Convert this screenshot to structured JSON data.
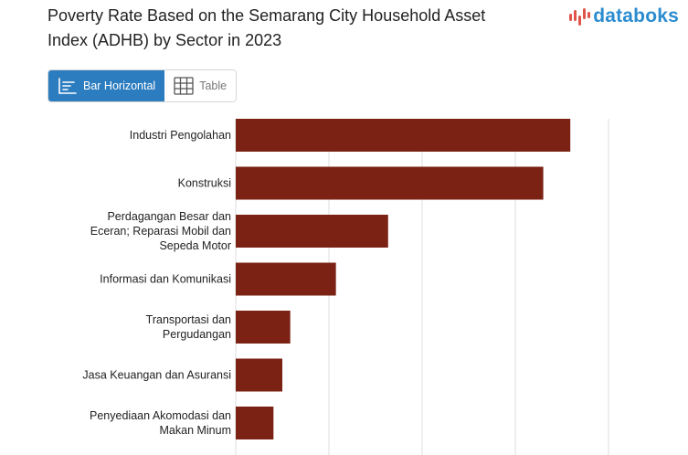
{
  "header": {
    "title": "Poverty Rate Based on the Semarang City Household Asset\nIndex (ADHB) by Sector in 2023",
    "logo_text": "databoks"
  },
  "tabs": [
    {
      "label": "Bar Horizontal",
      "active": true,
      "icon": "bar-chart-icon"
    },
    {
      "label": "Table",
      "active": false,
      "icon": "table-icon"
    }
  ],
  "colors": {
    "bar": "#7b2214",
    "grid": "#dddddd",
    "accent": "#2c7cc0",
    "logo": "#2b8ccf",
    "logo_mark": "#e0554a"
  },
  "chart_data": {
    "type": "bar",
    "orientation": "horizontal",
    "title": "Poverty Rate Based on the Semarang City Household Asset Index (ADHB) by Sector in 2023",
    "categories": [
      "Industri Pengolahan",
      "Konstruksi",
      "Perdagangan Besar dan Eceran; Reparasi Mobil dan Sepeda Motor",
      "Informasi dan Komunikasi",
      "Transportasi dan Pergudangan",
      "Jasa Keuangan dan Asuransi",
      "Penyediaan Akomodasi dan Makan Minum"
    ],
    "category_lines": [
      [
        "Industri Pengolahan"
      ],
      [
        "Konstruksi"
      ],
      [
        "Perdagangan Besar dan",
        "Eceran; Reparasi Mobil dan",
        "Sepeda Motor"
      ],
      [
        "Informasi dan Komunikasi"
      ],
      [
        "Transportasi dan",
        "Pergudangan"
      ],
      [
        "Jasa Keuangan dan Asuransi"
      ],
      [
        "Penyediaan Akomodasi dan",
        "Makan Minum"
      ]
    ],
    "values": [
      7.18,
      6.6,
      3.27,
      2.15,
      1.17,
      1.0,
      0.81
    ],
    "xlim": [
      0,
      8
    ],
    "gridlines": [
      0,
      2,
      4,
      6,
      8
    ],
    "grid": true,
    "legend": "none",
    "xlabel": "",
    "ylabel": ""
  }
}
